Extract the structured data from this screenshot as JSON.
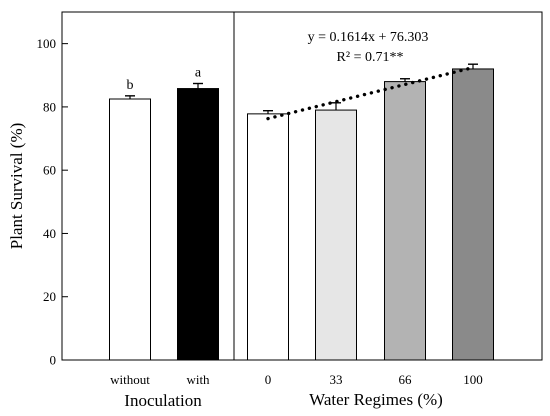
{
  "chart_data": {
    "type": "bar",
    "ylabel": "Plant Survival (%)",
    "ylim": [
      0,
      110
    ],
    "yticks": [
      0,
      20,
      40,
      60,
      80,
      100
    ],
    "grid": false,
    "groups": [
      {
        "xlabel": "Inoculation",
        "categories": [
          "without",
          "with"
        ],
        "values": [
          82.5,
          85.8
        ],
        "errors": [
          1.0,
          1.6
        ],
        "letters": [
          "b",
          "a"
        ],
        "colors": [
          "#ffffff",
          "#000000"
        ]
      },
      {
        "xlabel": "Water Regimes (%)",
        "categories": [
          "0",
          "33",
          "66",
          "100"
        ],
        "values": [
          77.8,
          79.0,
          88.0,
          92.0
        ],
        "errors": [
          1.0,
          2.3,
          0.9,
          1.5
        ],
        "colors": [
          "#ffffff",
          "#e6e6e6",
          "#b3b3b3",
          "#8a8a8a"
        ]
      }
    ],
    "trendline": {
      "intercept": 76.303,
      "slope": 0.1614,
      "x_from": 0,
      "x_to": 100,
      "equation": "y = 0.1614x + 76.303",
      "r2": "R² = 0.71**"
    }
  }
}
